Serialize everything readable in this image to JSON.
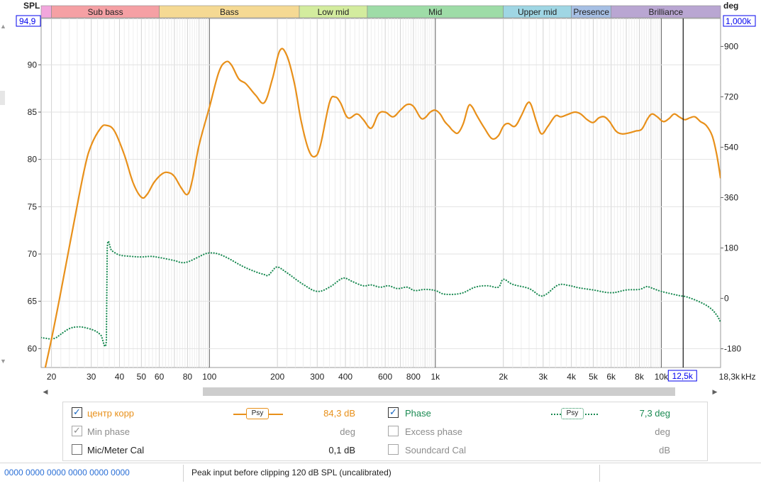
{
  "chart_data": {
    "type": "line",
    "x_scale": "log",
    "x_unit": "kHz",
    "ylabel_left": "SPL",
    "ylabel_right": "deg",
    "ylim_left": [
      58,
      94.9
    ],
    "ylim_right": [
      -247,
      1000
    ],
    "xlim": [
      18,
      18300
    ],
    "left_ticks": [
      60,
      65,
      70,
      75,
      80,
      85,
      90
    ],
    "right_ticks": [
      -180,
      0,
      180,
      360,
      540,
      720,
      900
    ],
    "left_top_label": "94,9",
    "right_top_label": "1,000k",
    "x_ticks": [
      {
        "v": 20,
        "label": "20"
      },
      {
        "v": 30,
        "label": "30"
      },
      {
        "v": 40,
        "label": "40"
      },
      {
        "v": 50,
        "label": "50"
      },
      {
        "v": 60,
        "label": "60"
      },
      {
        "v": 80,
        "label": "80"
      },
      {
        "v": 100,
        "label": "100"
      },
      {
        "v": 200,
        "label": "200"
      },
      {
        "v": 300,
        "label": "300"
      },
      {
        "v": 400,
        "label": "400"
      },
      {
        "v": 600,
        "label": "600"
      },
      {
        "v": 800,
        "label": "800"
      },
      {
        "v": 1000,
        "label": "1k"
      },
      {
        "v": 2000,
        "label": "2k"
      },
      {
        "v": 3000,
        "label": "3k"
      },
      {
        "v": 4000,
        "label": "4k"
      },
      {
        "v": 5000,
        "label": "5k"
      },
      {
        "v": 6000,
        "label": "6k"
      },
      {
        "v": 8000,
        "label": "8k"
      },
      {
        "v": 10000,
        "label": "10k"
      },
      {
        "v": 18300,
        "label": "18,3k"
      }
    ],
    "cursor": {
      "x": 12500,
      "label": "12,5k"
    },
    "bands": [
      {
        "label": "",
        "from": 18,
        "to": 20,
        "color": "#f2a6dc"
      },
      {
        "label": "Sub bass",
        "from": 20,
        "to": 60,
        "color": "#f5a0a4"
      },
      {
        "label": "Bass",
        "from": 60,
        "to": 250,
        "color": "#f5d993"
      },
      {
        "label": "Low mid",
        "from": 250,
        "to": 500,
        "color": "#d3ec9e"
      },
      {
        "label": "Mid",
        "from": 500,
        "to": 2000,
        "color": "#9edca7"
      },
      {
        "label": "Upper mid",
        "from": 2000,
        "to": 4000,
        "color": "#9fd6e4"
      },
      {
        "label": "Presence",
        "from": 4000,
        "to": 6000,
        "color": "#a6bfe4"
      },
      {
        "label": "Brilliance",
        "from": 6000,
        "to": 18300,
        "color": "#b9a6d2"
      }
    ],
    "series": [
      {
        "name": "центр корр",
        "axis": "left",
        "color": "#e8901a",
        "style": "solid",
        "points": [
          [
            18,
            56
          ],
          [
            20,
            61
          ],
          [
            22,
            66
          ],
          [
            25,
            73
          ],
          [
            28,
            79
          ],
          [
            30,
            81.5
          ],
          [
            33,
            83.3
          ],
          [
            35,
            83.6
          ],
          [
            38,
            83
          ],
          [
            42,
            80.5
          ],
          [
            46,
            77.5
          ],
          [
            50,
            76
          ],
          [
            53,
            76.3
          ],
          [
            57,
            77.6
          ],
          [
            62,
            78.5
          ],
          [
            66,
            78.6
          ],
          [
            70,
            78.2
          ],
          [
            75,
            77
          ],
          [
            80,
            76.3
          ],
          [
            84,
            77.8
          ],
          [
            90,
            81.5
          ],
          [
            100,
            85.5
          ],
          [
            110,
            89.2
          ],
          [
            118,
            90.3
          ],
          [
            125,
            90
          ],
          [
            135,
            88.5
          ],
          [
            145,
            88
          ],
          [
            160,
            86.8
          ],
          [
            175,
            86
          ],
          [
            190,
            88.5
          ],
          [
            205,
            91.5
          ],
          [
            220,
            91
          ],
          [
            238,
            88
          ],
          [
            255,
            84
          ],
          [
            275,
            81
          ],
          [
            293,
            80.3
          ],
          [
            310,
            81.5
          ],
          [
            340,
            86
          ],
          [
            360,
            86.6
          ],
          [
            380,
            86
          ],
          [
            410,
            84.4
          ],
          [
            450,
            84.8
          ],
          [
            480,
            84.2
          ],
          [
            520,
            83.3
          ],
          [
            560,
            84.8
          ],
          [
            600,
            85
          ],
          [
            650,
            84.5
          ],
          [
            700,
            85.2
          ],
          [
            750,
            85.8
          ],
          [
            800,
            85.6
          ],
          [
            860,
            84.4
          ],
          [
            900,
            84.4
          ],
          [
            950,
            85
          ],
          [
            1000,
            85.2
          ],
          [
            1050,
            84.8
          ],
          [
            1100,
            84
          ],
          [
            1150,
            83.5
          ],
          [
            1200,
            83
          ],
          [
            1260,
            82.8
          ],
          [
            1330,
            83.8
          ],
          [
            1400,
            85.6
          ],
          [
            1450,
            85.6
          ],
          [
            1530,
            84.6
          ],
          [
            1650,
            83.3
          ],
          [
            1780,
            82.2
          ],
          [
            1900,
            82.5
          ],
          [
            2000,
            83.5
          ],
          [
            2100,
            83.8
          ],
          [
            2250,
            83.5
          ],
          [
            2400,
            84.6
          ],
          [
            2550,
            85.9
          ],
          [
            2650,
            85.8
          ],
          [
            2800,
            84
          ],
          [
            2950,
            82.7
          ],
          [
            3150,
            83.5
          ],
          [
            3400,
            84.6
          ],
          [
            3600,
            84.5
          ],
          [
            3900,
            84.8
          ],
          [
            4150,
            85
          ],
          [
            4400,
            84.8
          ],
          [
            4700,
            84.2
          ],
          [
            5000,
            83.9
          ],
          [
            5300,
            84.4
          ],
          [
            5600,
            84.5
          ],
          [
            5900,
            84
          ],
          [
            6300,
            83
          ],
          [
            6700,
            82.7
          ],
          [
            7200,
            82.8
          ],
          [
            7700,
            83
          ],
          [
            8200,
            83.2
          ],
          [
            8700,
            84.3
          ],
          [
            9100,
            84.8
          ],
          [
            9600,
            84.5
          ],
          [
            10200,
            84
          ],
          [
            10800,
            84.3
          ],
          [
            11400,
            84.8
          ],
          [
            12000,
            84.5
          ],
          [
            12700,
            84.2
          ],
          [
            13400,
            84.4
          ],
          [
            14100,
            84.5
          ],
          [
            14900,
            84
          ],
          [
            15800,
            83.6
          ],
          [
            16800,
            82.5
          ],
          [
            17600,
            80.5
          ],
          [
            18300,
            78
          ]
        ]
      },
      {
        "name": "Phase",
        "axis": "right",
        "color": "#1a8a52",
        "style": "dotted",
        "points": [
          [
            18,
            -140
          ],
          [
            19,
            -143
          ],
          [
            20,
            -145
          ],
          [
            21,
            -140
          ],
          [
            22,
            -128
          ],
          [
            24,
            -108
          ],
          [
            26,
            -102
          ],
          [
            28,
            -104
          ],
          [
            31,
            -115
          ],
          [
            33,
            -130
          ],
          [
            35,
            -150
          ],
          [
            35.3,
            180
          ],
          [
            37,
            170
          ],
          [
            40,
            155
          ],
          [
            45,
            150
          ],
          [
            50,
            148
          ],
          [
            55,
            150
          ],
          [
            60,
            146
          ],
          [
            70,
            135
          ],
          [
            75,
            128
          ],
          [
            80,
            130
          ],
          [
            88,
            145
          ],
          [
            95,
            158
          ],
          [
            100,
            162
          ],
          [
            108,
            160
          ],
          [
            120,
            145
          ],
          [
            140,
            115
          ],
          [
            160,
            95
          ],
          [
            175,
            85
          ],
          [
            182,
            82
          ],
          [
            190,
            98
          ],
          [
            200,
            112
          ],
          [
            220,
            92
          ],
          [
            260,
            50
          ],
          [
            300,
            25
          ],
          [
            340,
            40
          ],
          [
            380,
            68
          ],
          [
            400,
            72
          ],
          [
            430,
            60
          ],
          [
            480,
            45
          ],
          [
            520,
            48
          ],
          [
            570,
            40
          ],
          [
            620,
            45
          ],
          [
            680,
            35
          ],
          [
            750,
            40
          ],
          [
            810,
            28
          ],
          [
            900,
            32
          ],
          [
            1000,
            28
          ],
          [
            1100,
            15
          ],
          [
            1300,
            18
          ],
          [
            1500,
            40
          ],
          [
            1700,
            45
          ],
          [
            1900,
            40
          ],
          [
            2000,
            68
          ],
          [
            2200,
            50
          ],
          [
            2600,
            35
          ],
          [
            2900,
            10
          ],
          [
            3100,
            15
          ],
          [
            3500,
            48
          ],
          [
            3900,
            46
          ],
          [
            4300,
            38
          ],
          [
            5000,
            30
          ],
          [
            6000,
            20
          ],
          [
            7000,
            30
          ],
          [
            8000,
            32
          ],
          [
            8600,
            42
          ],
          [
            9000,
            38
          ],
          [
            10000,
            25
          ],
          [
            12000,
            10
          ],
          [
            13000,
            5
          ],
          [
            15000,
            -15
          ],
          [
            16500,
            -35
          ],
          [
            17600,
            -60
          ],
          [
            18300,
            -85
          ]
        ]
      }
    ]
  },
  "legend": {
    "rows": [
      {
        "left": {
          "checked": true,
          "enabled": true,
          "label": "центр корр",
          "value": "84,3 dB",
          "psy": "Psy"
        },
        "right": {
          "checked": true,
          "enabled": true,
          "label": "Phase",
          "value": "7,3 deg",
          "psy": "Psy"
        }
      },
      {
        "left": {
          "checked": true,
          "enabled": false,
          "label": "Min phase",
          "value": "deg"
        },
        "right": {
          "checked": false,
          "enabled": false,
          "label": "Excess phase",
          "value": "deg"
        }
      },
      {
        "left": {
          "checked": false,
          "enabled": true,
          "label": "Mic/Meter Cal",
          "value": "0,1 dB"
        },
        "right": {
          "checked": false,
          "enabled": false,
          "label": "Soundcard Cal",
          "value": "dB"
        }
      }
    ]
  },
  "status": {
    "levels": "0000 0000  0000 0000  0000 0000",
    "message": "Peak input before clipping 120 dB SPL (uncalibrated)"
  },
  "colors": {
    "spl_trace": "#e8901a",
    "phase_trace": "#1a8a52",
    "value_box": "#0000ee",
    "grid_minor": "#d2d2d2",
    "grid_major": "#5a5a5a"
  }
}
